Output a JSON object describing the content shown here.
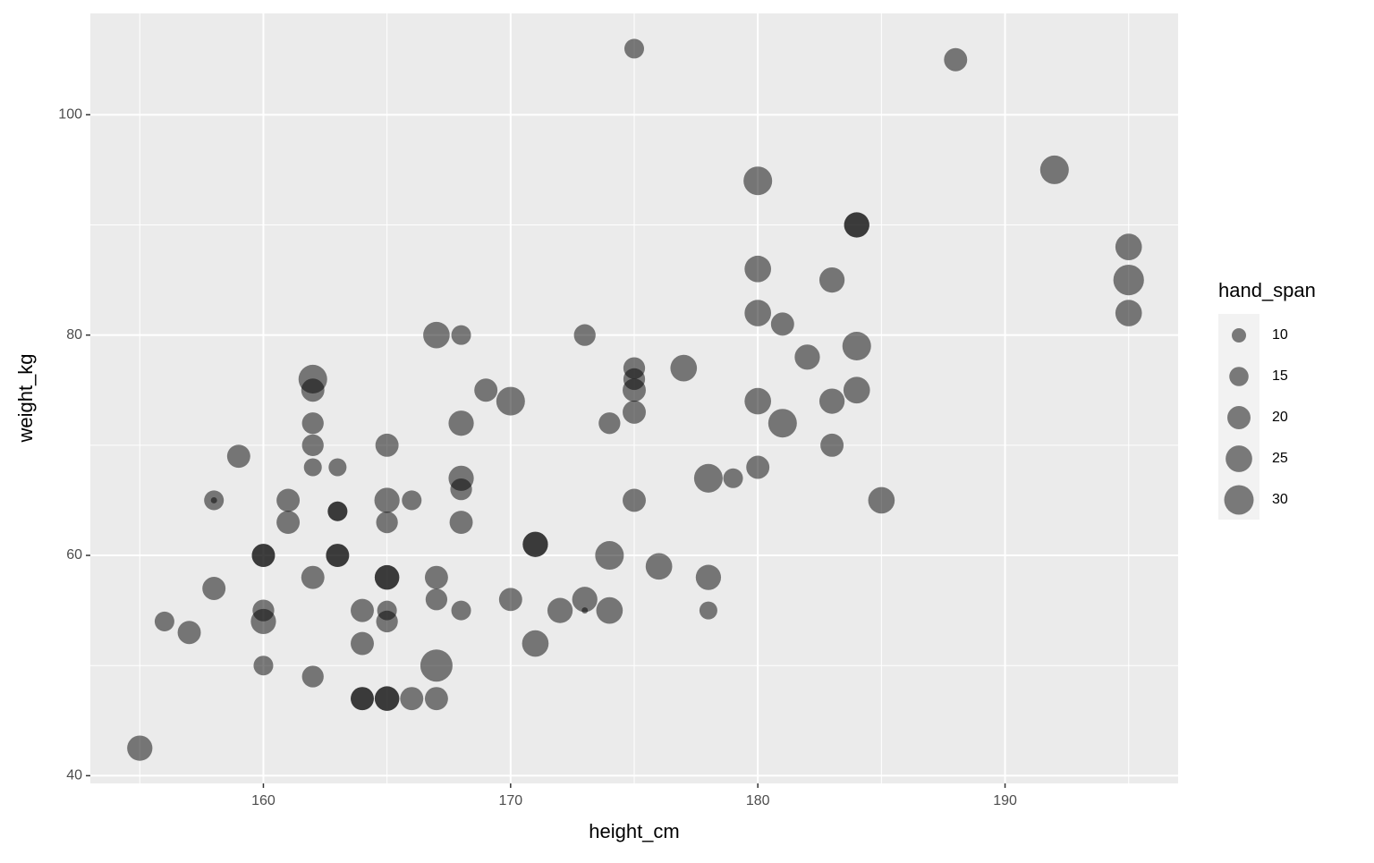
{
  "chart_data": {
    "type": "scatter",
    "x_label": "height_cm",
    "y_label": "weight_kg",
    "xlim": [
      153,
      197
    ],
    "ylim": [
      39.3,
      109.2
    ],
    "xticks": [
      160,
      170,
      180,
      190
    ],
    "yticks": [
      40,
      60,
      80,
      100
    ],
    "grid": true,
    "color": "#000000",
    "x": [
      155,
      156,
      157,
      158,
      158,
      158,
      159,
      160,
      160,
      160,
      160,
      160,
      161,
      161,
      162,
      162,
      162,
      162,
      162,
      162,
      162,
      163,
      163,
      163,
      163,
      163,
      164,
      164,
      164,
      164,
      165,
      165,
      165,
      165,
      165,
      165,
      165,
      165,
      165,
      166,
      166,
      167,
      167,
      167,
      167,
      167,
      168,
      168,
      168,
      168,
      168,
      168,
      169,
      170,
      170,
      171,
      171,
      171,
      172,
      173,
      173,
      173,
      174,
      174,
      174,
      175,
      175,
      175,
      175,
      175,
      175,
      176,
      177,
      178,
      178,
      178,
      179,
      180,
      180,
      180,
      180,
      180,
      181,
      181,
      182,
      183,
      183,
      183,
      184,
      184,
      184,
      184,
      185,
      188,
      192,
      195,
      195,
      195
    ],
    "values": [
      42.5,
      54,
      53,
      57,
      65,
      65,
      69,
      60,
      60,
      55,
      54,
      50,
      65,
      63,
      76,
      75,
      72,
      70,
      68,
      58,
      49,
      68,
      64,
      64,
      60,
      60,
      55,
      52,
      47,
      47,
      70,
      65,
      63,
      58,
      58,
      55,
      54,
      47,
      47,
      65,
      47,
      80,
      58,
      56,
      50,
      47,
      80,
      72,
      67,
      66,
      63,
      55,
      75,
      74,
      56,
      61,
      61,
      52,
      55,
      80,
      56,
      55,
      72,
      60,
      55,
      106,
      77,
      76,
      75,
      73,
      65,
      59,
      77,
      67,
      58,
      55,
      67,
      94,
      86,
      82,
      74,
      68,
      81,
      72,
      78,
      85,
      74,
      70,
      90,
      90,
      79,
      75,
      65,
      105,
      95,
      88,
      85,
      82
    ],
    "sizes": [
      23,
      15.5,
      20,
      20,
      15.5,
      5,
      20,
      20,
      20,
      18,
      23,
      15.5,
      20,
      20,
      28.5,
      20,
      18,
      18,
      13.5,
      20,
      18,
      13.5,
      15.5,
      15.5,
      20,
      20,
      20,
      20,
      20,
      20,
      20,
      23,
      18,
      22,
      22,
      15.5,
      18,
      22,
      22,
      15.5,
      20,
      25,
      20,
      18,
      35,
      20,
      15.5,
      23,
      23,
      18,
      20,
      15.5,
      20,
      28.5,
      20,
      23,
      23,
      25,
      23,
      18,
      23,
      5,
      18,
      28.5,
      25,
      15.5,
      18,
      18,
      20,
      20,
      20,
      25,
      25,
      28.5,
      23,
      13.5,
      15.5,
      28.5,
      25,
      25,
      25,
      20,
      20,
      28.5,
      23,
      23,
      23,
      20,
      23,
      23,
      28.5,
      25,
      25,
      20,
      28.5,
      25,
      32,
      25
    ],
    "size_legend": {
      "title": "hand_span",
      "values": [
        10,
        15,
        20,
        25,
        30
      ]
    }
  }
}
